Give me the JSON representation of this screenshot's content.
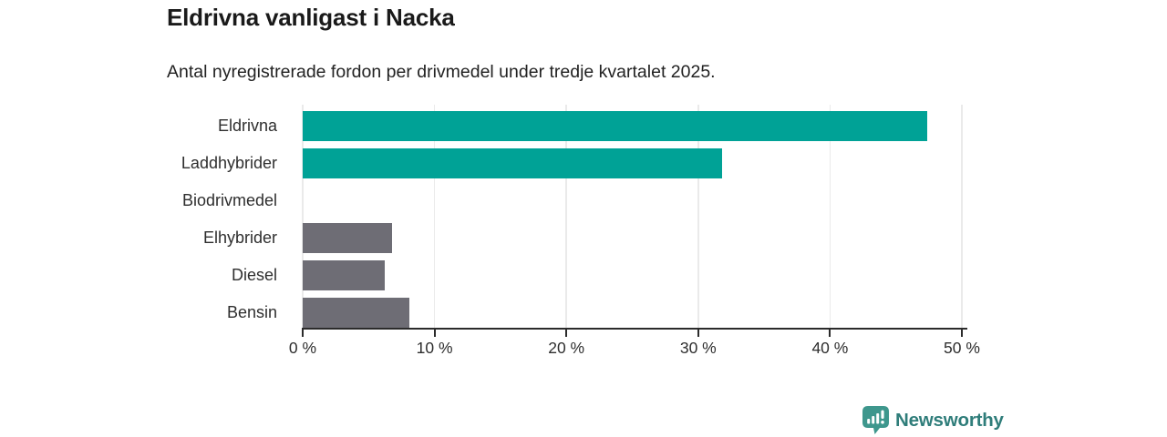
{
  "header": {
    "title": "Eldrivna vanligast i Nacka",
    "subtitle": "Antal nyregistrerade fordon per drivmedel under tredje kvartalet 2025."
  },
  "chart_data": {
    "type": "bar",
    "orientation": "horizontal",
    "title": "Eldrivna vanligast i Nacka",
    "subtitle": "Antal nyregistrerade fordon per drivmedel under tredje kvartalet 2025.",
    "categories": [
      "Eldrivna",
      "Laddhybrider",
      "Biodrivmedel",
      "Elhybrider",
      "Diesel",
      "Bensin"
    ],
    "values": [
      47.4,
      31.8,
      0,
      6.8,
      6.2,
      8.1
    ],
    "unit": "%",
    "xlabel": "",
    "ylabel": "",
    "xlim": [
      0,
      50
    ],
    "x_tick_values": [
      0,
      10,
      20,
      30,
      40,
      50
    ],
    "x_tick_labels": [
      "0 %",
      "10 %",
      "20 %",
      "30 %",
      "40 %",
      "50 %"
    ],
    "bar_colors": [
      "#00a296",
      "#00a296",
      "#6e6d75",
      "#6e6d75",
      "#6e6d75",
      "#6e6d75"
    ],
    "grid": "vertical",
    "legend": "none"
  },
  "colors": {
    "highlight_teal": "#00a296",
    "neutral_gray": "#6e6d75",
    "axis": "#2b2b2b",
    "gridline": "#eaeaea",
    "title_text": "#1a1a1a",
    "body_text": "#2e2e2e",
    "brand_teal": "#2f7d7a",
    "brand_icon_teal": "#3e978d",
    "background": "#ffffff"
  },
  "footer": {
    "brand": "Newsworthy"
  }
}
